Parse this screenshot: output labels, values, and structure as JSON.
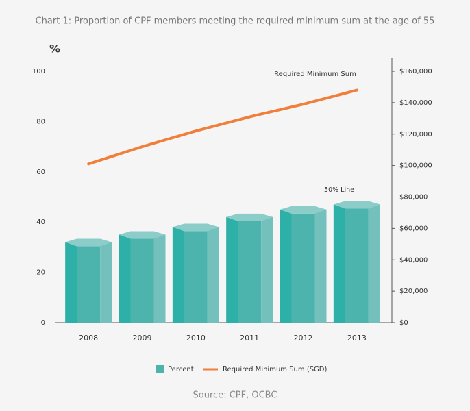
{
  "chart_data": {
    "type": "bar",
    "title": "Chart 1: Proportion of CPF members meeting the required minimum sum at the age of 55",
    "ylabel": "%",
    "categories": [
      "2008",
      "2009",
      "2010",
      "2011",
      "2012",
      "2013"
    ],
    "series": [
      {
        "name": "Percent",
        "color": "#4db3ad",
        "values": [
          32,
          35,
          38,
          42,
          45,
          47
        ]
      },
      {
        "name": "Required Minimum Sum (SGD)",
        "type": "line",
        "axis": "y2",
        "color": "#f07f3c",
        "values": [
          101000,
          112000,
          122000,
          131000,
          139000,
          148000
        ]
      }
    ],
    "ylim": [
      0,
      100
    ],
    "yticks": [
      0,
      20,
      40,
      60,
      80,
      100
    ],
    "y2lim": [
      0,
      160000
    ],
    "y2ticks": [
      {
        "value": 0,
        "label": "$0"
      },
      {
        "value": 20000,
        "label": "$20,000"
      },
      {
        "value": 40000,
        "label": "$40,000"
      },
      {
        "value": 60000,
        "label": "$60,000"
      },
      {
        "value": 80000,
        "label": "$80,000"
      },
      {
        "value": 100000,
        "label": "$100,000"
      },
      {
        "value": 120000,
        "label": "$120,000"
      },
      {
        "value": 140000,
        "label": "$140,000"
      },
      {
        "value": 160000,
        "label": "$160,000"
      }
    ],
    "annotations": [
      {
        "text": "Required Minimum Sum"
      },
      {
        "text": "50% Line",
        "value": 50
      }
    ],
    "grid": false,
    "source": "Source: CPF, OCBC"
  }
}
